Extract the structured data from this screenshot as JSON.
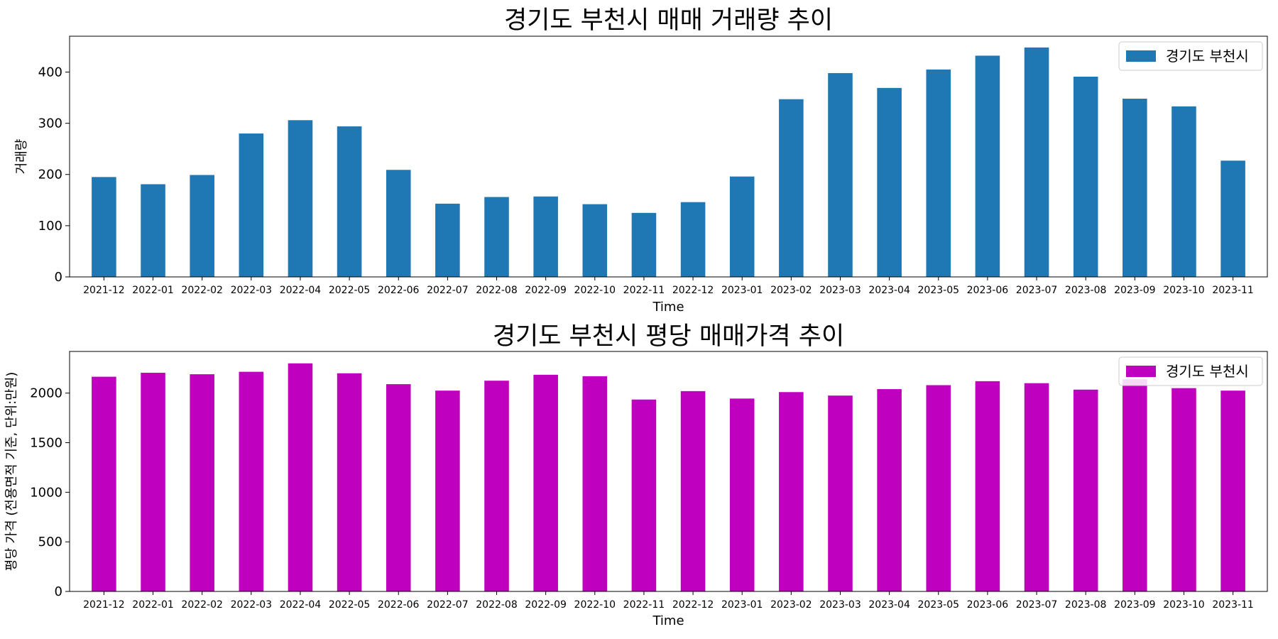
{
  "chart_data": [
    {
      "type": "bar",
      "title": "경기도 부천시 매매 거래량 추이",
      "xlabel": "Time",
      "ylabel": "거래량",
      "categories": [
        "2021-12",
        "2022-01",
        "2022-02",
        "2022-03",
        "2022-04",
        "2022-05",
        "2022-06",
        "2022-07",
        "2022-08",
        "2022-09",
        "2022-10",
        "2022-11",
        "2022-12",
        "2023-01",
        "2023-02",
        "2023-03",
        "2023-04",
        "2023-05",
        "2023-06",
        "2023-07",
        "2023-08",
        "2023-09",
        "2023-10",
        "2023-11"
      ],
      "series": [
        {
          "name": "경기도 부천시",
          "color": "#1f77b4",
          "values": [
            195,
            181,
            199,
            280,
            306,
            294,
            209,
            143,
            156,
            157,
            142,
            125,
            146,
            196,
            347,
            398,
            369,
            405,
            432,
            448,
            391,
            348,
            333,
            227
          ]
        }
      ],
      "ylim": [
        0,
        470
      ],
      "yticks": [
        0,
        100,
        200,
        300,
        400
      ],
      "grid": false,
      "legend": "upper right"
    },
    {
      "type": "bar",
      "title": "경기도 부천시 평당 매매가격 추이",
      "xlabel": "Time",
      "ylabel": "평당 가격 (전용면적 기준, 단위:만원)",
      "categories": [
        "2021-12",
        "2022-01",
        "2022-02",
        "2022-03",
        "2022-04",
        "2022-05",
        "2022-06",
        "2022-07",
        "2022-08",
        "2022-09",
        "2022-10",
        "2022-11",
        "2022-12",
        "2023-01",
        "2023-02",
        "2023-03",
        "2023-04",
        "2023-05",
        "2023-06",
        "2023-07",
        "2023-08",
        "2023-09",
        "2023-10",
        "2023-11"
      ],
      "series": [
        {
          "name": "경기도 부천시",
          "color": "#bf00bf",
          "values": [
            2165,
            2205,
            2190,
            2215,
            2300,
            2200,
            2090,
            2025,
            2125,
            2185,
            2170,
            1935,
            2020,
            1945,
            2010,
            1975,
            2040,
            2080,
            2120,
            2100,
            2035,
            2140,
            2050,
            2025
          ]
        }
      ],
      "ylim": [
        0,
        2420
      ],
      "yticks": [
        0,
        500,
        1000,
        1500,
        2000
      ],
      "grid": false,
      "legend": "upper right"
    }
  ]
}
